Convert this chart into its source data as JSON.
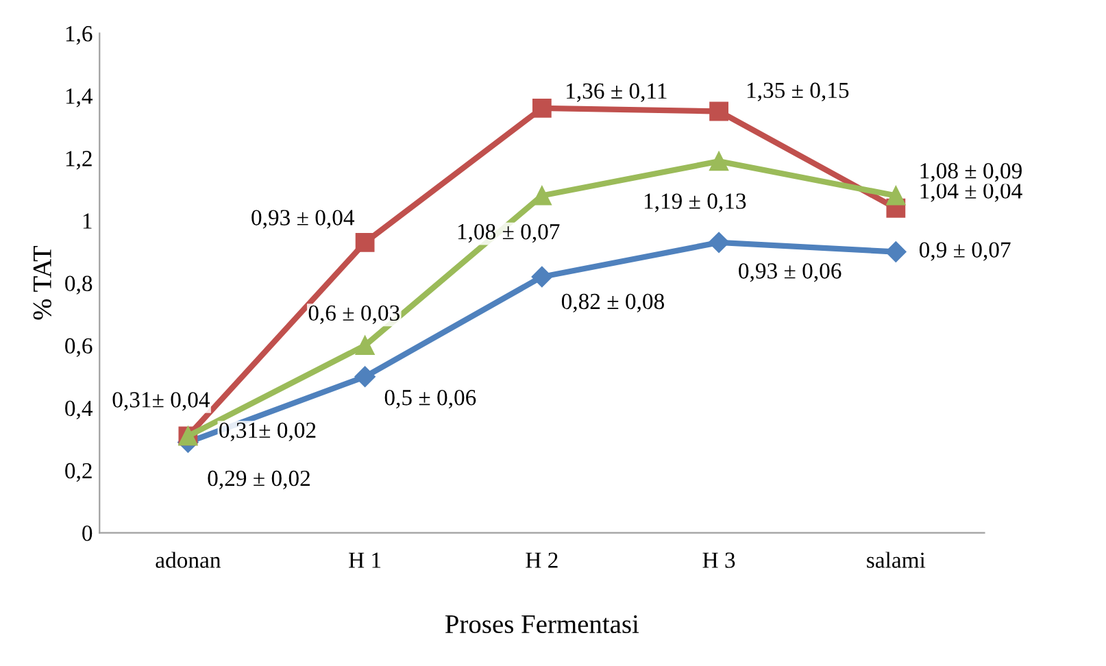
{
  "chart_data": {
    "type": "line",
    "xlabel": "Proses Fermentasi",
    "ylabel": "% TAT",
    "categories": [
      "adonan",
      "H 1",
      "H 2",
      "H 3",
      "salami"
    ],
    "series": [
      {
        "color": "#4f81bd",
        "marker": "diamond",
        "values": [
          0.29,
          0.5,
          0.82,
          0.93,
          0.9
        ],
        "value_labels": [
          "0,29 ± 0,02",
          "0,5 ± 0,06",
          "0,82 ± 0,08",
          "0,93 ± 0,06",
          "0,9 ± 0,07"
        ]
      },
      {
        "color": "#c0504d",
        "marker": "square",
        "values": [
          0.31,
          0.93,
          1.36,
          1.35,
          1.04
        ],
        "value_labels": [
          "0,31± 0,04",
          "0,93 ± 0,04",
          "1,36 ± 0,11",
          "1,35 ± 0,15",
          "1,04 ± 0,04"
        ]
      },
      {
        "color": "#9bbb59",
        "marker": "triangle",
        "values": [
          0.31,
          0.6,
          1.08,
          1.19,
          1.08
        ],
        "value_labels": [
          "0,31± 0,02",
          "0,6 ± 0,03",
          "1,08 ± 0,07",
          "1,19 ± 0,13",
          "1,08 ± 0,09"
        ]
      }
    ],
    "ylim": [
      0,
      1.6
    ],
    "yticks": [
      0,
      {
        "value": 0.2,
        "label": "0,2"
      },
      {
        "value": 0.4,
        "label": "0,4"
      },
      {
        "value": 0.6,
        "label": "0,6"
      },
      {
        "value": 0.8,
        "label": "0,8"
      },
      1,
      {
        "value": 1.2,
        "label": "1,2"
      },
      {
        "value": 1.4,
        "label": "1,4"
      },
      {
        "value": 1.6,
        "label": "1,6"
      }
    ],
    "grid": false,
    "legend": false,
    "line_style": "solid"
  }
}
